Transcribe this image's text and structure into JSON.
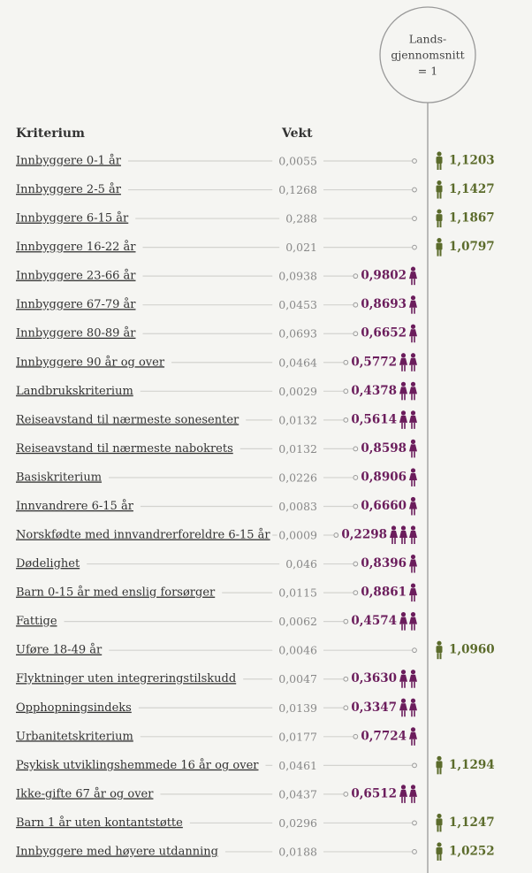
{
  "legend": {
    "lines": [
      "Lands-",
      "gjennomsnitt",
      "= 1"
    ]
  },
  "header": {
    "criterion": "Kriterium",
    "weight": "Vekt"
  },
  "rows": [
    {
      "label": "Innbyggere 0-1 år",
      "weight": "0,0055",
      "index": "1,1203",
      "icons": 1
    },
    {
      "label": "Innbyggere 2-5 år",
      "weight": "0,1268",
      "index": "1,1427",
      "icons": 1
    },
    {
      "label": "Innbyggere 6-15 år",
      "weight": "0,288",
      "index": "1,1867",
      "icons": 1
    },
    {
      "label": "Innbyggere 16-22 år",
      "weight": "0,021",
      "index": "1,0797",
      "icons": 1
    },
    {
      "label": "Innbyggere 23-66 år",
      "weight": "0,0938",
      "index": "0,9802",
      "icons": 1
    },
    {
      "label": "Innbyggere 67-79 år",
      "weight": "0,0453",
      "index": "0,8693",
      "icons": 1
    },
    {
      "label": "Innbyggere 80-89 år",
      "weight": "0,0693",
      "index": "0,6652",
      "icons": 1
    },
    {
      "label": "Innbyggere 90 år og over",
      "weight": "0,0464",
      "index": "0,5772",
      "icons": 2
    },
    {
      "label": "Landbrukskriterium",
      "weight": "0,0029",
      "index": "0,4378",
      "icons": 2
    },
    {
      "label": "Reiseavstand til nærmeste sonesenter",
      "weight": "0,0132",
      "index": "0,5614",
      "icons": 2
    },
    {
      "label": "Reiseavstand til nærmeste nabokrets",
      "weight": "0,0132",
      "index": "0,8598",
      "icons": 1
    },
    {
      "label": "Basiskriterium",
      "weight": "0,0226",
      "index": "0,8906",
      "icons": 1
    },
    {
      "label": "Innvandrere 6-15 år",
      "weight": "0,0083",
      "index": "0,6660",
      "icons": 1
    },
    {
      "label": "Norskfødte med innvandrerforeldre 6-15 år",
      "weight": "0,0009",
      "index": "0,2298",
      "icons": 3
    },
    {
      "label": "Dødelighet",
      "weight": "0,046",
      "index": "0,8396",
      "icons": 1
    },
    {
      "label": "Barn 0-15 år med enslig forsørger",
      "weight": "0,0115",
      "index": "0,8861",
      "icons": 1
    },
    {
      "label": "Fattige",
      "weight": "0,0062",
      "index": "0,4574",
      "icons": 2
    },
    {
      "label": "Uføre 18-49 år",
      "weight": "0,0046",
      "index": "1,0960",
      "icons": 1
    },
    {
      "label": "Flyktninger uten integreringstilskudd",
      "weight": "0,0047",
      "index": "0,3630",
      "icons": 2
    },
    {
      "label": "Opphopningsindeks",
      "weight": "0,0139",
      "index": "0,3347",
      "icons": 2
    },
    {
      "label": "Urbanitetskriterium",
      "weight": "0,0177",
      "index": "0,7724",
      "icons": 1
    },
    {
      "label": "Psykisk utviklingshemmede 16 år og over",
      "weight": "0,0461",
      "index": "1,1294",
      "icons": 1
    },
    {
      "label": "Ikke-gifte 67 år og over",
      "weight": "0,0437",
      "index": "0,6512",
      "icons": 2
    },
    {
      "label": "Barn 1 år uten kontantstøtte",
      "weight": "0,0296",
      "index": "1,1247",
      "icons": 1
    },
    {
      "label": "Innbyggere med høyere utdanning",
      "weight": "0,0188",
      "index": "1,0252",
      "icons": 1
    }
  ]
}
